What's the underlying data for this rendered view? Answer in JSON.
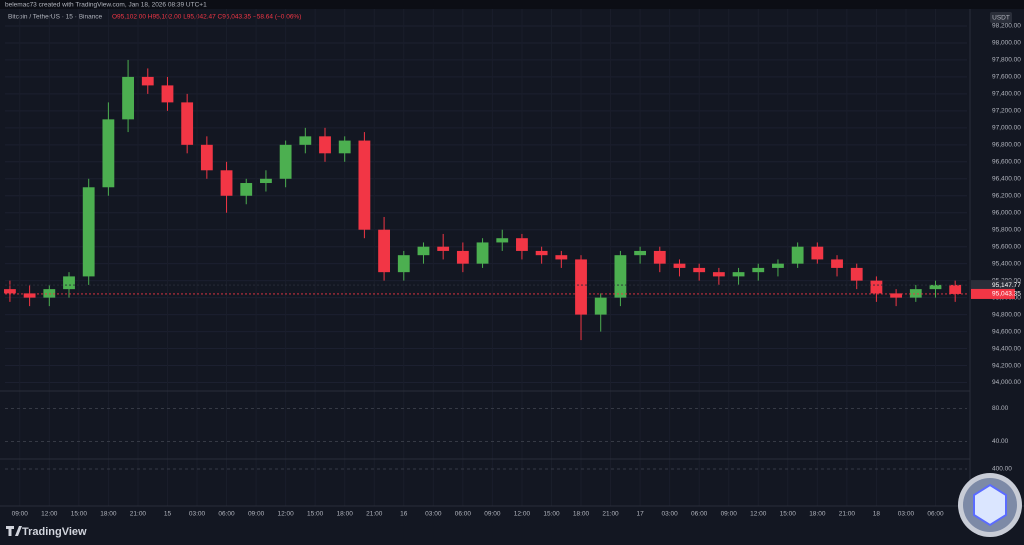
{
  "header": {
    "caption": "belemac73 created with TradingView.com, Jan 18, 2026 08:39 UTC+1"
  },
  "chart_data": {
    "type": "candlestick",
    "title": "Bitcoin / TetherUS · 15 · Binance",
    "ohlc_text": "O95,102.00 H95,102.00 L95,042.47 C95,043.35 −58.64 (−0.06%)",
    "currency": "USDT",
    "x": [
      -1,
      1,
      3,
      5,
      7,
      9,
      11,
      13,
      15,
      17,
      19,
      21,
      23,
      25,
      27,
      29,
      31,
      33,
      35,
      37,
      39,
      41,
      43,
      45,
      47,
      49,
      51,
      53,
      55,
      57,
      59,
      61,
      63,
      65,
      67,
      69,
      71,
      73,
      75,
      77,
      79,
      81,
      83,
      85,
      87,
      89,
      91,
      93,
      95
    ],
    "open": [
      95100,
      95050,
      95000,
      95100,
      95250,
      96300,
      97100,
      97600,
      97500,
      97300,
      96800,
      96500,
      96200,
      96350,
      96400,
      96800,
      96900,
      96700,
      96850,
      95800,
      95300,
      95500,
      95600,
      95550,
      95400,
      95650,
      95700,
      95550,
      95500,
      95450,
      94800,
      95000,
      95500,
      95550,
      95400,
      95350,
      95300,
      95250,
      95300,
      95350,
      95400,
      95600,
      95450,
      95350,
      95200,
      95050,
      95000,
      95100,
      95150
    ],
    "high": [
      95200,
      95150,
      95150,
      95300,
      96400,
      97300,
      97800,
      97700,
      97600,
      97400,
      96900,
      96600,
      96400,
      96500,
      96850,
      97000,
      97000,
      96900,
      96950,
      95950,
      95550,
      95650,
      95750,
      95650,
      95700,
      95800,
      95750,
      95600,
      95550,
      95500,
      95050,
      95550,
      95600,
      95600,
      95450,
      95400,
      95350,
      95350,
      95400,
      95450,
      95650,
      95650,
      95500,
      95400,
      95250,
      95100,
      95150,
      95200,
      95200
    ],
    "low": [
      94950,
      94900,
      94900,
      95000,
      95150,
      96200,
      96950,
      97400,
      97200,
      96700,
      96400,
      96000,
      96100,
      96250,
      96300,
      96700,
      96600,
      96600,
      95700,
      95200,
      95200,
      95400,
      95450,
      95300,
      95350,
      95550,
      95450,
      95400,
      95350,
      94500,
      94600,
      94900,
      95400,
      95300,
      95250,
      95200,
      95150,
      95150,
      95200,
      95250,
      95350,
      95400,
      95250,
      95100,
      94950,
      94900,
      94950,
      95000,
      94950
    ],
    "close": [
      95050,
      95000,
      95100,
      95250,
      96300,
      97100,
      97600,
      97500,
      97300,
      96800,
      96500,
      96200,
      96350,
      96400,
      96800,
      96900,
      96700,
      96850,
      95800,
      95300,
      95500,
      95600,
      95550,
      95400,
      95650,
      95700,
      95550,
      95500,
      95450,
      94800,
      95000,
      95500,
      95550,
      95400,
      95350,
      95300,
      95250,
      95300,
      95350,
      95400,
      95600,
      95450,
      95350,
      95200,
      95050,
      95000,
      95100,
      95150,
      95043.35
    ],
    "up_color": "#4caf50",
    "down_color": "#f23645",
    "xlim": [
      -1.5,
      96.2
    ],
    "ylim": [
      93900,
      98400
    ],
    "xticks": [
      {
        "value": 0,
        "label": "09:00"
      },
      {
        "value": 3,
        "label": "12:00"
      },
      {
        "value": 6,
        "label": "15:00"
      },
      {
        "value": 9,
        "label": "18:00"
      },
      {
        "value": 12,
        "label": "21:00"
      },
      {
        "value": 15,
        "label": "15"
      },
      {
        "value": 18,
        "label": "03:00"
      },
      {
        "value": 21,
        "label": "06:00"
      },
      {
        "value": 24,
        "label": "09:00"
      },
      {
        "value": 27,
        "label": "12:00"
      },
      {
        "value": 30,
        "label": "15:00"
      },
      {
        "value": 33,
        "label": "18:00"
      },
      {
        "value": 36,
        "label": "21:00"
      },
      {
        "value": 39,
        "label": "16"
      },
      {
        "value": 42,
        "label": "03:00"
      },
      {
        "value": 45,
        "label": "06:00"
      },
      {
        "value": 48,
        "label": "09:00"
      },
      {
        "value": 51,
        "label": "12:00"
      },
      {
        "value": 54,
        "label": "15:00"
      },
      {
        "value": 57,
        "label": "18:00"
      },
      {
        "value": 60,
        "label": "21:00"
      },
      {
        "value": 63,
        "label": "17"
      },
      {
        "value": 66,
        "label": "03:00"
      },
      {
        "value": 69,
        "label": "06:00"
      },
      {
        "value": 72,
        "label": "09:00"
      },
      {
        "value": 75,
        "label": "12:00"
      },
      {
        "value": 78,
        "label": "15:00"
      },
      {
        "value": 81,
        "label": "18:00"
      },
      {
        "value": 84,
        "label": "21:00"
      },
      {
        "value": 87,
        "label": "18"
      },
      {
        "value": 90,
        "label": "03:00"
      },
      {
        "value": 93,
        "label": "06:00"
      }
    ],
    "yticks": [
      {
        "value": 94000,
        "label": "94,000.00"
      },
      {
        "value": 94200,
        "label": "94,200.00"
      },
      {
        "value": 94400,
        "label": "94,400.00"
      },
      {
        "value": 94600,
        "label": "94,600.00"
      },
      {
        "value": 94800,
        "label": "94,800.00"
      },
      {
        "value": 95000,
        "label": "95,000.00"
      },
      {
        "value": 95200,
        "label": "95,200.00"
      },
      {
        "value": 95400,
        "label": "95,400.00"
      },
      {
        "value": 95600,
        "label": "95,600.00"
      },
      {
        "value": 95800,
        "label": "95,800.00"
      },
      {
        "value": 96000,
        "label": "96,000.00"
      },
      {
        "value": 96200,
        "label": "96,200.00"
      },
      {
        "value": 96400,
        "label": "96,400.00"
      },
      {
        "value": 96600,
        "label": "96,600.00"
      },
      {
        "value": 96800,
        "label": "96,800.00"
      },
      {
        "value": 97000,
        "label": "97,000.00"
      },
      {
        "value": 97200,
        "label": "97,200.00"
      },
      {
        "value": 97400,
        "label": "97,400.00"
      },
      {
        "value": 97600,
        "label": "97,600.00"
      },
      {
        "value": 97800,
        "label": "97,800.00"
      },
      {
        "value": 98000,
        "label": "98,000.00"
      },
      {
        "value": 98200,
        "label": "98,200.00"
      }
    ],
    "markers": [
      {
        "value": 95147.77,
        "label": "95,147.77",
        "color": "#2a2e39"
      },
      {
        "value": 95043.35,
        "label": "95,043.35",
        "color": "#f23645"
      }
    ],
    "rsi": {
      "ylim": [
        20,
        100
      ],
      "yticks": [
        {
          "value": 80,
          "label": "80.00"
        },
        {
          "value": 40,
          "label": "40.00"
        }
      ]
    },
    "macd": {
      "ylim": [
        -400,
        600
      ],
      "yticks": [
        {
          "value": 400,
          "label": "400.00"
        }
      ]
    }
  },
  "footer": {
    "brand": "TradingView"
  }
}
